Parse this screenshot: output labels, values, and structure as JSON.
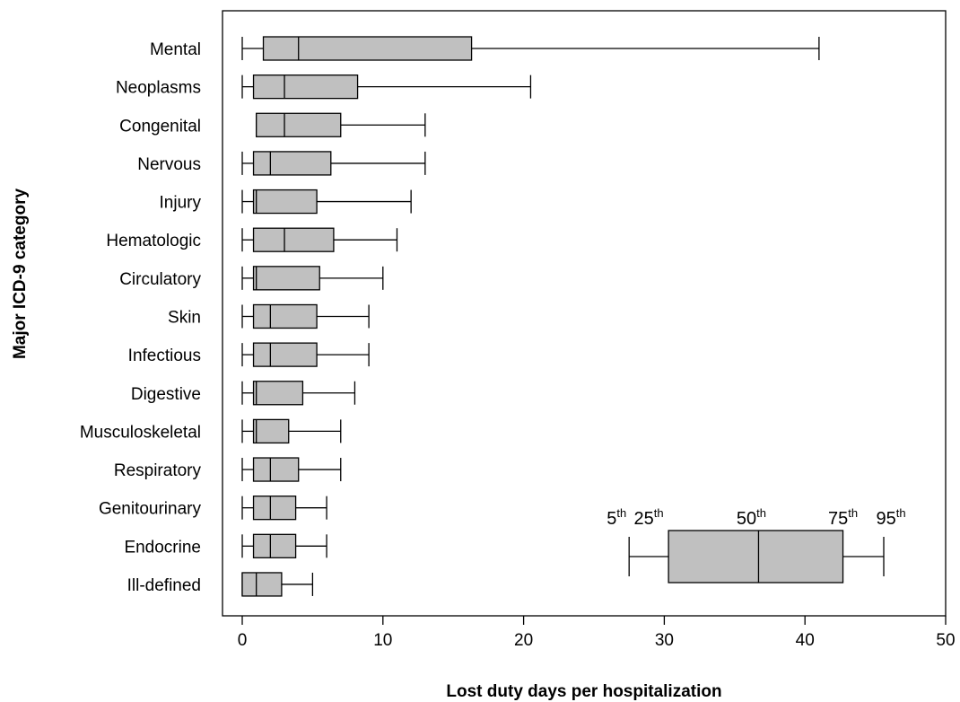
{
  "chart_data": {
    "type": "boxplot",
    "xlabel": "Lost duty days per hospitalization",
    "ylabel": "Major ICD-9 category",
    "xlim": [
      0,
      50
    ],
    "x_ticks": [
      "0",
      "10",
      "20",
      "30",
      "40",
      "50"
    ],
    "x_tick_values": [
      0,
      10,
      20,
      30,
      40,
      50
    ],
    "grid": false,
    "categories": [
      {
        "name": "Mental",
        "p5": 0,
        "p25": 1.5,
        "p50": 4,
        "p75": 16.3,
        "p95": 41
      },
      {
        "name": "Neoplasms",
        "p5": 0,
        "p25": 0.8,
        "p50": 3,
        "p75": 8.2,
        "p95": 20.5
      },
      {
        "name": "Congenital",
        "p5": 1,
        "p25": 1,
        "p50": 3,
        "p75": 7,
        "p95": 13
      },
      {
        "name": "Nervous",
        "p5": 0,
        "p25": 0.8,
        "p50": 2,
        "p75": 6.3,
        "p95": 13
      },
      {
        "name": "Injury",
        "p5": 0,
        "p25": 0.8,
        "p50": 1,
        "p75": 5.3,
        "p95": 12
      },
      {
        "name": "Hematologic",
        "p5": 0,
        "p25": 0.8,
        "p50": 3,
        "p75": 6.5,
        "p95": 11
      },
      {
        "name": "Circulatory",
        "p5": 0,
        "p25": 0.8,
        "p50": 1,
        "p75": 5.5,
        "p95": 10
      },
      {
        "name": "Skin",
        "p5": 0,
        "p25": 0.8,
        "p50": 2,
        "p75": 5.3,
        "p95": 9
      },
      {
        "name": "Infectious",
        "p5": 0,
        "p25": 0.8,
        "p50": 2,
        "p75": 5.3,
        "p95": 9
      },
      {
        "name": "Digestive",
        "p5": 0,
        "p25": 0.8,
        "p50": 1,
        "p75": 4.3,
        "p95": 8
      },
      {
        "name": "Musculoskeletal",
        "p5": 0,
        "p25": 0.8,
        "p50": 1,
        "p75": 3.3,
        "p95": 7
      },
      {
        "name": "Respiratory",
        "p5": 0,
        "p25": 0.8,
        "p50": 2,
        "p75": 4,
        "p95": 7
      },
      {
        "name": "Genitourinary",
        "p5": 0,
        "p25": 0.8,
        "p50": 2,
        "p75": 3.8,
        "p95": 6
      },
      {
        "name": "Endocrine",
        "p5": 0,
        "p25": 0.8,
        "p50": 2,
        "p75": 3.8,
        "p95": 6
      },
      {
        "name": "Ill-defined",
        "p5": 0,
        "p25": 0,
        "p50": 1,
        "p75": 2.8,
        "p95": 5
      }
    ],
    "legend": {
      "placement": "bottom-right",
      "example": {
        "p5": 27.5,
        "p25": 30.3,
        "p50": 36.7,
        "p75": 42.7,
        "p95": 45.6
      },
      "labels": [
        {
          "num": "5",
          "sup": "th"
        },
        {
          "num": "25",
          "sup": "th"
        },
        {
          "num": "50",
          "sup": "th"
        },
        {
          "num": "75",
          "sup": "th"
        },
        {
          "num": "95",
          "sup": "th"
        }
      ]
    },
    "colors": {
      "box_fill": "#c0c0c0",
      "stroke": "#000000"
    }
  }
}
